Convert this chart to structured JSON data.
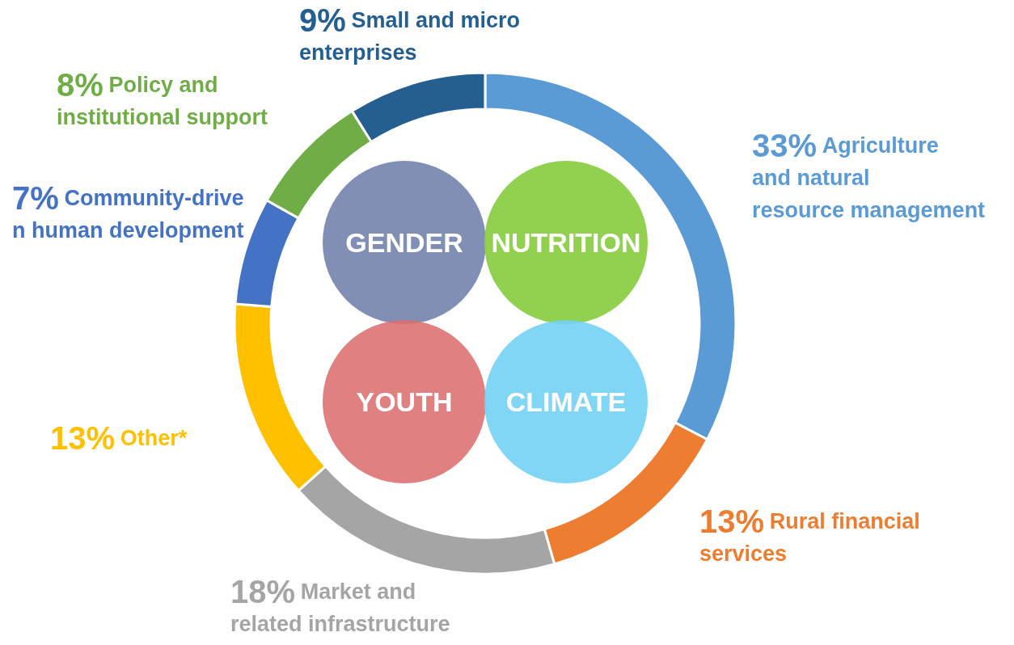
{
  "chart_data": {
    "type": "donut",
    "categories": [
      "Agriculture and natural resource management",
      "Rural financial services",
      "Market and related infrastructure",
      "Other*",
      "Community-driven human development",
      "Policy and institutional support",
      "Small and micro enterprises"
    ],
    "values": [
      33,
      13,
      18,
      13,
      7,
      8,
      9
    ],
    "colors": [
      "#5b9bd5",
      "#ed7d31",
      "#a5a5a5",
      "#ffc000",
      "#4472c4",
      "#70ad47",
      "#255e91"
    ],
    "value_labels": [
      "33%",
      "13%",
      "18%",
      "13%",
      "7%",
      "8%",
      "9%"
    ],
    "annotations": [
      "GENDER",
      "NUTRITION",
      "YOUTH",
      "CLIMATE"
    ]
  }
}
